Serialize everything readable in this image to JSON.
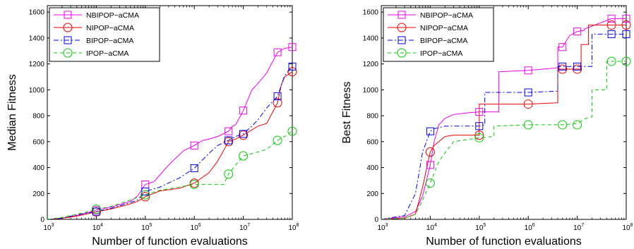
{
  "chart_data": [
    {
      "type": "line",
      "xscale": "log",
      "xlim": [
        1000,
        100000000
      ],
      "ylim": [
        0,
        1650
      ],
      "xlabel": "Number of function evaluations",
      "ylabel": "Median Fitness",
      "xticks": [
        1000,
        10000,
        100000,
        1000000,
        10000000,
        100000000
      ],
      "xtick_base": "10",
      "xtick_exponents": [
        "3",
        "4",
        "5",
        "6",
        "7",
        "8"
      ],
      "yticks": [
        0,
        200,
        400,
        600,
        800,
        1000,
        1200,
        1400,
        1600
      ],
      "ytick_labels": [
        "0",
        "200",
        "400",
        "600",
        "800",
        "1000",
        "1200",
        "1400",
        "1600"
      ],
      "legend_position": "top-left",
      "grid": false,
      "series": [
        {
          "name": "NBIPOP−aCMA",
          "color": "#ee00ee",
          "dash": "",
          "marker": "square",
          "x": [
            1000,
            2000,
            4000,
            7000,
            10000,
            20000,
            50000,
            70000,
            100000,
            150000,
            300000,
            600000,
            1000000,
            1500000,
            2000000,
            3000000,
            5000000,
            6000000,
            7000000,
            10000000,
            15000000,
            20000000,
            30000000,
            50000000,
            70000000,
            100000000
          ],
          "y": [
            0,
            8,
            30,
            55,
            72,
            95,
            140,
            180,
            270,
            290,
            420,
            530,
            570,
            610,
            620,
            640,
            680,
            720,
            730,
            840,
            1000,
            1050,
            1130,
            1290,
            1320,
            1330
          ],
          "marker_x": [
            10000,
            100000,
            1000000,
            5000000,
            10000000,
            50000000,
            100000000
          ],
          "marker_y": [
            72,
            270,
            570,
            680,
            840,
            1290,
            1330
          ]
        },
        {
          "name": "NIPOP−aCMA",
          "color": "#ee0000",
          "dash": "",
          "marker": "circle",
          "x": [
            1000,
            2000,
            4000,
            7000,
            10000,
            20000,
            50000,
            70000,
            100000,
            200000,
            500000,
            1000000,
            2000000,
            3000000,
            5000000,
            7000000,
            10000000,
            20000000,
            30000000,
            50000000,
            60000000,
            70000000,
            100000000
          ],
          "y": [
            0,
            8,
            25,
            45,
            58,
            80,
            120,
            140,
            175,
            220,
            240,
            280,
            360,
            450,
            600,
            620,
            650,
            720,
            740,
            900,
            1040,
            1100,
            1140
          ],
          "marker_x": [
            10000,
            100000,
            1000000,
            5000000,
            10000000,
            50000000,
            100000000
          ],
          "marker_y": [
            58,
            175,
            280,
            600,
            650,
            900,
            1140
          ]
        },
        {
          "name": "BIPOP−aCMA",
          "color": "#0000ee",
          "dash": "7,3,2,3",
          "marker": "square",
          "x": [
            1000,
            2000,
            4000,
            7000,
            10000,
            20000,
            50000,
            70000,
            100000,
            200000,
            500000,
            1000000,
            2000000,
            3000000,
            5000000,
            7000000,
            10000000,
            15000000,
            20000000,
            30000000,
            50000000,
            70000000,
            100000000
          ],
          "y": [
            0,
            10,
            35,
            50,
            60,
            85,
            130,
            150,
            215,
            250,
            320,
            395,
            510,
            570,
            610,
            640,
            660,
            720,
            770,
            860,
            950,
            1110,
            1180
          ],
          "marker_x": [
            10000,
            100000,
            1000000,
            5000000,
            10000000,
            50000000,
            100000000
          ],
          "marker_y": [
            60,
            215,
            395,
            610,
            660,
            950,
            1180
          ]
        },
        {
          "name": "IPOP−aCMA",
          "color": "#00cc00",
          "dash": "5,4",
          "marker": "circle",
          "x": [
            1000,
            2000,
            4000,
            7000,
            10000,
            20000,
            50000,
            70000,
            100000,
            200000,
            500000,
            1000000,
            2000000,
            3000000,
            4000000,
            5000000,
            7000000,
            10000000,
            20000000,
            30000000,
            50000000,
            70000000,
            100000000
          ],
          "y": [
            0,
            15,
            40,
            60,
            78,
            100,
            150,
            170,
            190,
            225,
            250,
            270,
            270,
            270,
            270,
            350,
            420,
            490,
            520,
            540,
            610,
            640,
            680
          ],
          "marker_x": [
            10000,
            100000,
            1000000,
            5000000,
            10000000,
            50000000,
            100000000
          ],
          "marker_y": [
            78,
            190,
            270,
            350,
            490,
            610,
            680
          ]
        }
      ]
    },
    {
      "type": "line",
      "xscale": "log",
      "xlim": [
        1000,
        100000000
      ],
      "ylim": [
        0,
        1650
      ],
      "xlabel": "Number of function evaluations",
      "ylabel": "Best Fitness",
      "xticks": [
        1000,
        10000,
        100000,
        1000000,
        10000000,
        100000000
      ],
      "xtick_base": "10",
      "xtick_exponents": [
        "3",
        "4",
        "5",
        "6",
        "7",
        "8"
      ],
      "yticks": [
        0,
        200,
        400,
        600,
        800,
        1000,
        1200,
        1400,
        1600
      ],
      "ytick_labels": [
        "0",
        "200",
        "400",
        "600",
        "800",
        "1000",
        "1200",
        "1400",
        "1600"
      ],
      "legend_position": "top-left",
      "grid": false,
      "series": [
        {
          "name": "NBIPOP−aCMA",
          "color": "#ee00ee",
          "dash": "",
          "marker": "square",
          "x": [
            1000,
            3000,
            5000,
            7000,
            10000,
            12000,
            15000,
            20000,
            30000,
            50000,
            100000,
            250000,
            250000,
            1000000,
            4000000,
            4000000,
            5000000,
            7000000,
            10000000,
            14000000,
            14000000,
            50000000,
            100000000
          ],
          "y": [
            0,
            20,
            60,
            180,
            420,
            600,
            730,
            780,
            810,
            820,
            830,
            830,
            1140,
            1150,
            1170,
            1330,
            1330,
            1420,
            1450,
            1460,
            1470,
            1550,
            1550
          ],
          "marker_x": [
            10000,
            100000,
            1000000,
            5000000,
            10000000,
            50000000,
            100000000
          ],
          "marker_y": [
            420,
            830,
            1150,
            1330,
            1450,
            1550,
            1550
          ]
        },
        {
          "name": "NIPOP−aCMA",
          "color": "#ee0000",
          "dash": "",
          "marker": "circle",
          "x": [
            1000,
            3000,
            5000,
            7000,
            10000,
            12000,
            15000,
            20000,
            30000,
            100000,
            100000,
            1000000,
            4000000,
            4000000,
            12000000,
            12000000,
            17000000,
            17000000,
            100000000
          ],
          "y": [
            0,
            10,
            40,
            250,
            520,
            570,
            600,
            640,
            650,
            650,
            890,
            890,
            900,
            1160,
            1160,
            1350,
            1350,
            1500,
            1500
          ],
          "marker_x": [
            10000,
            100000,
            1000000,
            5000000,
            10000000,
            50000000,
            100000000
          ],
          "marker_y": [
            520,
            650,
            890,
            1160,
            1160,
            1500,
            1500
          ]
        },
        {
          "name": "BIPOP−aCMA",
          "color": "#0000ee",
          "dash": "7,3,2,3",
          "marker": "square",
          "x": [
            1000,
            3000,
            5000,
            7000,
            10000,
            12000,
            20000,
            50000,
            100000,
            130000,
            130000,
            1000000,
            4000000,
            4000000,
            15000000,
            20000000,
            20000000,
            100000000
          ],
          "y": [
            0,
            30,
            200,
            520,
            680,
            700,
            720,
            720,
            720,
            730,
            980,
            980,
            990,
            1180,
            1180,
            1180,
            1430,
            1430
          ],
          "marker_x": [
            10000,
            100000,
            1000000,
            5000000,
            10000000,
            50000000,
            100000000
          ],
          "marker_y": [
            680,
            720,
            980,
            1180,
            1180,
            1430,
            1430
          ]
        },
        {
          "name": "IPOP−aCMA",
          "color": "#00cc00",
          "dash": "5,4",
          "marker": "circle",
          "x": [
            1000,
            3000,
            5000,
            7000,
            10000,
            15000,
            30000,
            100000,
            200000,
            200000,
            1000000,
            5000000,
            10000000,
            15000000,
            20000000,
            20000000,
            40000000,
            40000000,
            100000000
          ],
          "y": [
            0,
            10,
            40,
            150,
            280,
            450,
            600,
            630,
            640,
            720,
            730,
            730,
            740,
            780,
            790,
            1000,
            1000,
            1220,
            1220
          ],
          "marker_x": [
            10000,
            100000,
            1000000,
            5000000,
            10000000,
            50000000,
            100000000
          ],
          "marker_y": [
            280,
            630,
            730,
            730,
            730,
            1220,
            1220
          ]
        }
      ]
    }
  ]
}
